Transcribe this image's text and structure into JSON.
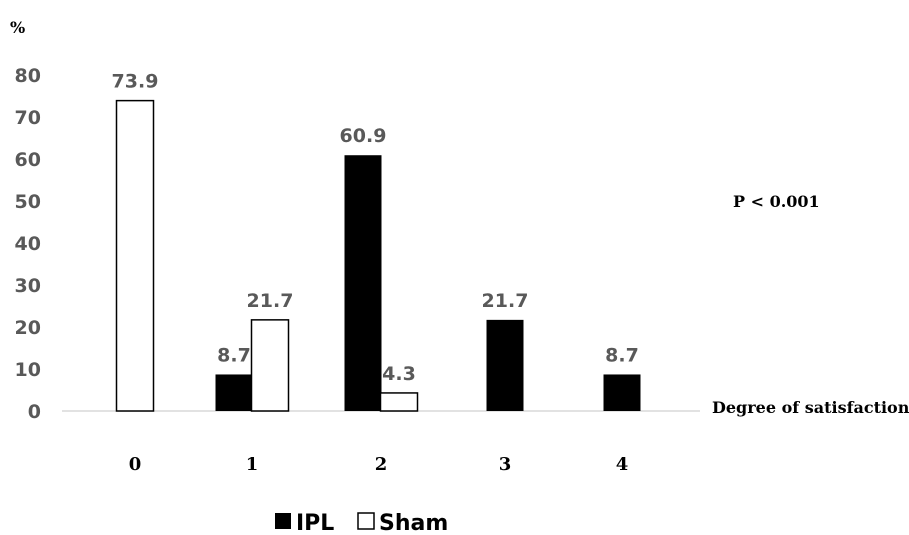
{
  "chart_data": {
    "type": "bar",
    "y_unit": "%",
    "xlabel": "Degree of satisfaction",
    "annotation": "P < 0.001",
    "categories": [
      "0",
      "1",
      "2",
      "3",
      "4"
    ],
    "yticks": [
      "0",
      "10",
      "20",
      "30",
      "40",
      "50",
      "60",
      "70",
      "80"
    ],
    "ylim": [
      0,
      80
    ],
    "grid": false,
    "legend_position": "bottom",
    "series": [
      {
        "name": "IPL",
        "color": "#000000",
        "fill": "solid-black",
        "values": [
          null,
          8.7,
          60.9,
          21.7,
          8.7
        ],
        "labels": [
          "",
          "8.7",
          "60.9",
          "21.7",
          "8.7"
        ]
      },
      {
        "name": "Sham",
        "color": "#ffffff",
        "fill": "outline-white",
        "values": [
          73.9,
          21.7,
          4.3,
          null,
          null
        ],
        "labels": [
          "73.9",
          "21.7",
          "4.3",
          "",
          ""
        ]
      }
    ]
  }
}
